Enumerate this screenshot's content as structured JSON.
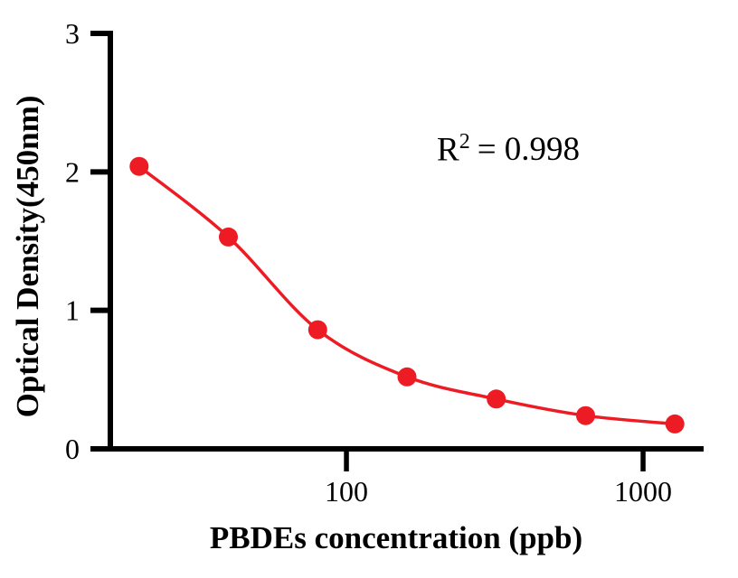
{
  "figure": {
    "background_color": "#FFFFFF",
    "axis_color": "#000000",
    "annotation": {
      "base": "R",
      "exponent": "2",
      "value": "= 0.998"
    }
  },
  "chart_data": {
    "type": "scatter",
    "title": "",
    "xlabel": "PBDEs concentration (ppb)",
    "ylabel": "Optical Density(450nm)",
    "annotation": "R² = 0.998",
    "x_scale": "log",
    "xlim": [
      16,
      1600
    ],
    "ylim": [
      0,
      3
    ],
    "xticks": [
      100,
      1000
    ],
    "yticks": [
      0,
      1,
      2,
      3
    ],
    "grid": false,
    "legend": "none",
    "series": [
      {
        "x": [
          20,
          40,
          80,
          160,
          320,
          640,
          1280
        ],
        "y": [
          2.04,
          1.53,
          0.86,
          0.52,
          0.36,
          0.24,
          0.18
        ],
        "color": "#ED1C24",
        "marker": "filled-circle",
        "line": "smooth"
      }
    ]
  }
}
